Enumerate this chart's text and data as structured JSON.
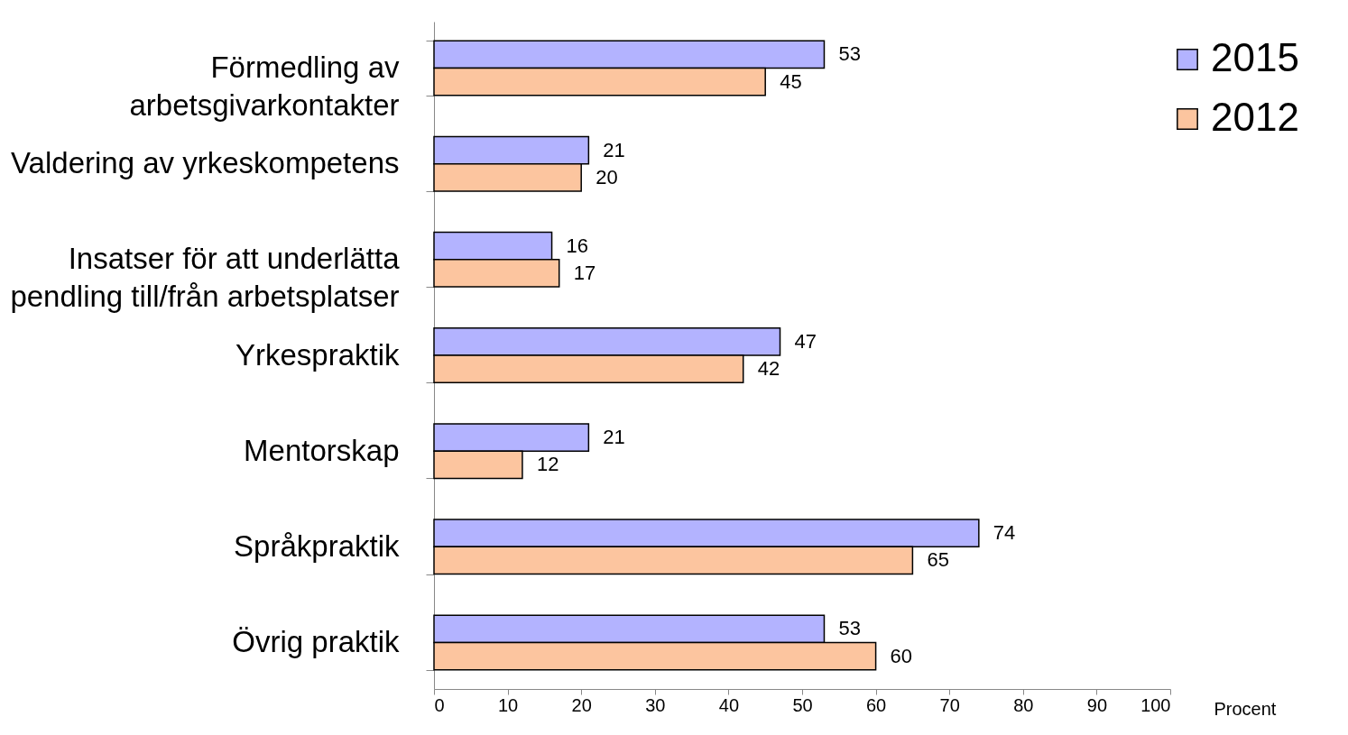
{
  "chart_data": {
    "type": "bar",
    "orientation": "horizontal",
    "xlabel": "Procent",
    "categories": [
      "Förmedling av arbetsgivarkontakter",
      "Valdering av yrkeskompetens",
      "Insatser för att underlätta pendling till/från arbetsplatser",
      "Yrkespraktik",
      "Mentorskap",
      "Språkpraktik",
      "Övrig praktik"
    ],
    "series": [
      {
        "name": "2015",
        "color": "#b3b3ff",
        "values": [
          53,
          21,
          16,
          47,
          21,
          74,
          53
        ]
      },
      {
        "name": "2012",
        "color": "#fcc59f",
        "values": [
          45,
          20,
          17,
          42,
          12,
          65,
          60
        ]
      }
    ],
    "xlim": [
      0,
      100
    ],
    "xticks": [
      0,
      10,
      20,
      30,
      40,
      50,
      60,
      70,
      80,
      90,
      100
    ],
    "data_labels": true,
    "legend": "top right"
  }
}
